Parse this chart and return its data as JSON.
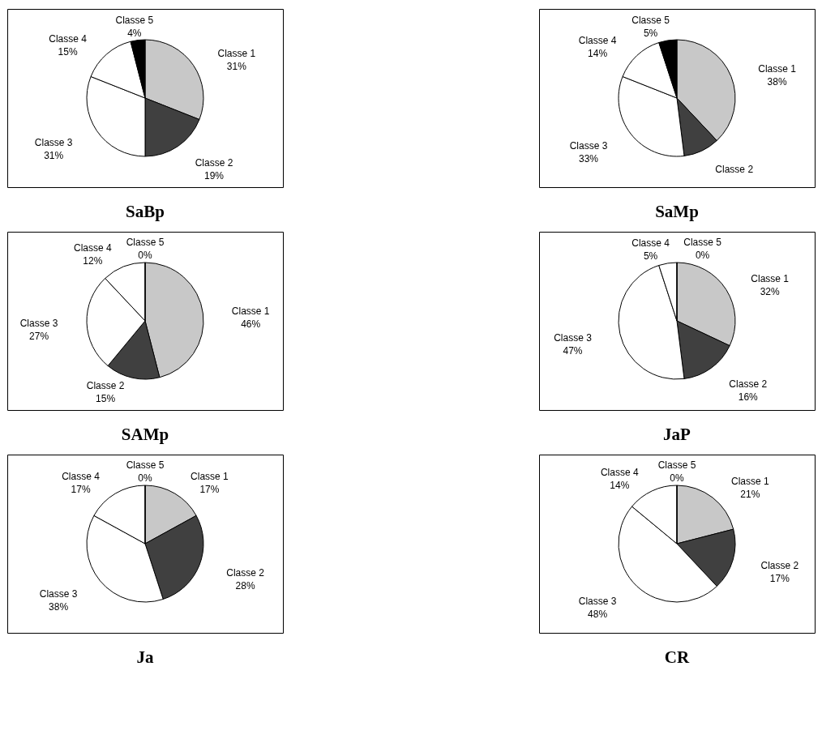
{
  "chart_data": [
    {
      "type": "pie",
      "title": "SaBp",
      "categories": [
        "Classe 1",
        "Classe 2",
        "Classe 3",
        "Classe 4",
        "Classe 5"
      ],
      "values": [
        31,
        19,
        31,
        15,
        4
      ],
      "colors": [
        "#c8c8c8",
        "#404040",
        "#ffffff",
        "#ffffff",
        "#000000"
      ],
      "value_labels": [
        "31%",
        "19%",
        "31%",
        "15%",
        "4%"
      ]
    },
    {
      "type": "pie",
      "title": "SaMp",
      "categories": [
        "Classe 1",
        "Classe 2",
        "Classe 3",
        "Classe 4",
        "Classe 5"
      ],
      "values": [
        38,
        10,
        33,
        14,
        5
      ],
      "colors": [
        "#c8c8c8",
        "#404040",
        "#ffffff",
        "#ffffff",
        "#000000"
      ],
      "value_labels": [
        "38%",
        null,
        "33%",
        "14%",
        "5%"
      ]
    },
    {
      "type": "pie",
      "title": "SAMp",
      "categories": [
        "Classe 1",
        "Classe 2",
        "Classe 3",
        "Classe 4",
        "Classe 5"
      ],
      "values": [
        46,
        15,
        27,
        12,
        0
      ],
      "colors": [
        "#c8c8c8",
        "#404040",
        "#ffffff",
        "#ffffff",
        "#000000"
      ],
      "value_labels": [
        "46%",
        "15%",
        "27%",
        "12%",
        "0%"
      ]
    },
    {
      "type": "pie",
      "title": "JaP",
      "categories": [
        "Classe 1",
        "Classe 2",
        "Classe 3",
        "Classe 4",
        "Classe 5"
      ],
      "values": [
        32,
        16,
        47,
        5,
        0
      ],
      "colors": [
        "#c8c8c8",
        "#404040",
        "#ffffff",
        "#ffffff",
        "#000000"
      ],
      "value_labels": [
        "32%",
        "16%",
        "47%",
        "5%",
        "0%"
      ]
    },
    {
      "type": "pie",
      "title": "Ja",
      "categories": [
        "Classe 1",
        "Classe 2",
        "Classe 3",
        "Classe 4",
        "Classe 5"
      ],
      "values": [
        17,
        28,
        38,
        17,
        0
      ],
      "colors": [
        "#c8c8c8",
        "#404040",
        "#ffffff",
        "#ffffff",
        "#000000"
      ],
      "value_labels": [
        "17%",
        "28%",
        "38%",
        "17%",
        "0%"
      ]
    },
    {
      "type": "pie",
      "title": "CR",
      "categories": [
        "Classe 1",
        "Classe 2",
        "Classe 3",
        "Classe 4",
        "Classe 5"
      ],
      "values": [
        21,
        17,
        48,
        14,
        0
      ],
      "colors": [
        "#c8c8c8",
        "#404040",
        "#ffffff",
        "#ffffff",
        "#000000"
      ],
      "value_labels": [
        "21%",
        "17%",
        "48%",
        "14%",
        "0%"
      ]
    }
  ]
}
